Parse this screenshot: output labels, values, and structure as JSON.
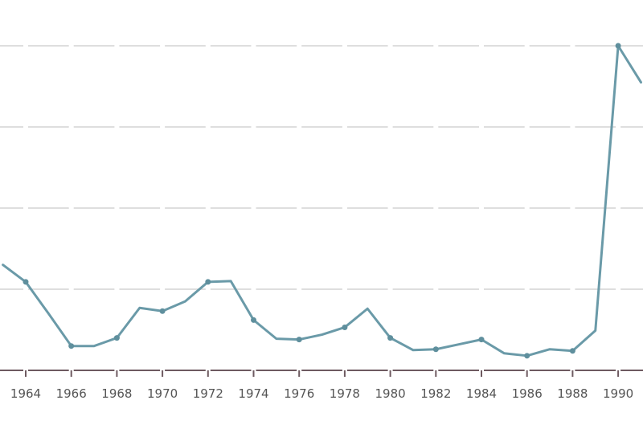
{
  "chart_data": {
    "type": "line",
    "title": "",
    "xlabel": "",
    "ylabel": "",
    "grid": true,
    "legend": null,
    "color": "#6a9aa8",
    "tick_labels": [
      "1964",
      "1966",
      "1968",
      "1970",
      "1972",
      "1974",
      "1976",
      "1978",
      "1980",
      "1982",
      "1984",
      "1986",
      "1988",
      "1990"
    ],
    "x": [
      1963,
      1964,
      1965,
      1966,
      1967,
      1968,
      1969,
      1970,
      1971,
      1972,
      1973,
      1974,
      1975,
      1976,
      1977,
      1978,
      1979,
      1980,
      1981,
      1982,
      1983,
      1984,
      1985,
      1986,
      1987,
      1988,
      1989,
      1990,
      1991
    ],
    "values": [
      1.3,
      1.09,
      0.7,
      0.3,
      0.3,
      0.4,
      0.77,
      0.73,
      0.85,
      1.09,
      1.1,
      0.62,
      0.39,
      0.38,
      0.44,
      0.53,
      0.76,
      0.4,
      0.25,
      0.26,
      0.32,
      0.38,
      0.21,
      0.18,
      0.26,
      0.24,
      0.49,
      4.0,
      3.55
    ],
    "ylim": [
      0,
      4.05
    ],
    "y_gridlines": [
      1,
      2,
      3,
      4
    ],
    "note": "No y-axis tick labels visible; values expressed in gridline units"
  }
}
